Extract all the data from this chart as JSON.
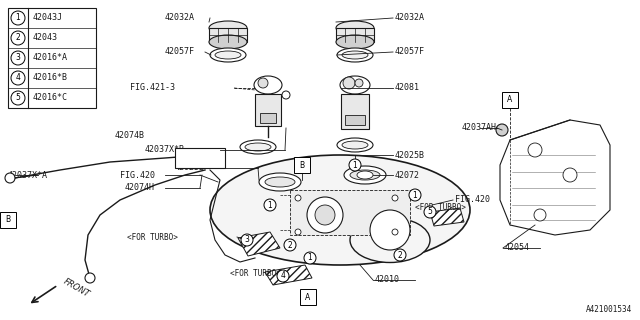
{
  "bg_color": "#ffffff",
  "line_color": "#1a1a1a",
  "parts_list": [
    [
      "1",
      "42043J"
    ],
    [
      "2",
      "42043"
    ],
    [
      "3",
      "42016*A"
    ],
    [
      "4",
      "42016*B"
    ],
    [
      "5",
      "42016*C"
    ]
  ],
  "diagram_id": "A421001534",
  "figsize": [
    6.4,
    3.2
  ],
  "dpi": 100
}
